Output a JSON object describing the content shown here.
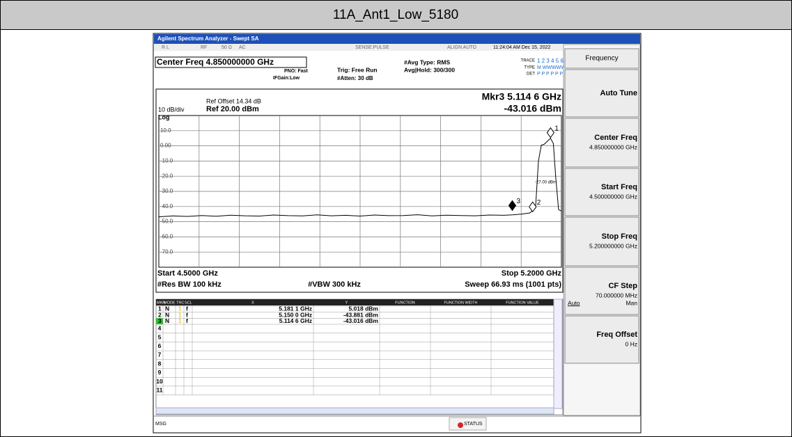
{
  "header": {
    "title": "11A_Ant1_Low_5180"
  },
  "window": {
    "title": "Agilent Spectrum Analyzer - Swept SA"
  },
  "status_bar": {
    "rl": "R L",
    "rf": "RF",
    "impedance": "50 Ω",
    "coupling": "AC",
    "sense": "SENSE:PULSE",
    "align": "ALIGN AUTO",
    "datetime": "11:24:04 AM Dec 15, 2022"
  },
  "settings": {
    "center_freq": "Center Freq 4.850000000 GHz",
    "pno": "PNO: Fast",
    "ifgain": "IFGain:Low",
    "trig": "Trig: Free Run",
    "atten": "#Atten: 30 dB",
    "avg_type": "#Avg Type: RMS",
    "avg_hold": "Avg|Hold: 300/300",
    "trace_label": "TRACE",
    "trace_nums": "1 2 3 4 5 6",
    "type_label": "TYPE",
    "type_val": "M WWWWW",
    "det_label": "DET",
    "det_val": "P P P P P P"
  },
  "display": {
    "ref_offset": "Ref Offset 14.34 dB",
    "scale": "10 dB/div",
    "ref_level": "Ref 20.00 dBm",
    "scale_type": "Log",
    "marker_freq": "Mkr3 5.114 6 GHz",
    "marker_amp": "-43.016 dBm",
    "threshold_label": "-27.00 dBm",
    "start": "Start 4.5000 GHz",
    "stop": "Stop 5.2000 GHz",
    "rbw": "#Res BW 100 kHz",
    "vbw": "#VBW 300 kHz",
    "sweep": "Sweep  66.93 ms (1001 pts)",
    "yticks": [
      {
        "value": 10,
        "label": "10.0"
      },
      {
        "value": 0,
        "label": "0.00"
      },
      {
        "value": -10,
        "label": "-10.0"
      },
      {
        "value": -20,
        "label": "-20.0"
      },
      {
        "value": -30,
        "label": "-30.0"
      },
      {
        "value": -40,
        "label": "-40.0"
      },
      {
        "value": -50,
        "label": "-50.0"
      },
      {
        "value": -60,
        "label": "-60.0"
      },
      {
        "value": -70,
        "label": "-70.0"
      }
    ]
  },
  "trace": {
    "xlim": [
      4.5,
      5.2
    ],
    "x": [
      4.5,
      4.525,
      4.55,
      4.575,
      4.6,
      4.625,
      4.65,
      4.675,
      4.7,
      4.725,
      4.75,
      4.775,
      4.8,
      4.825,
      4.85,
      4.875,
      4.9,
      4.925,
      4.95,
      4.975,
      5.0,
      5.025,
      5.05,
      5.075,
      5.1,
      5.115,
      5.13,
      5.145,
      5.155,
      5.16,
      5.165,
      5.17,
      5.181,
      5.186,
      5.19,
      5.195,
      5.2
    ],
    "values": [
      -46.8,
      -46.2,
      -46.5,
      -45.9,
      -46.4,
      -45.7,
      -46.1,
      -46.3,
      -45.6,
      -46.0,
      -46.2,
      -45.5,
      -46.1,
      -45.8,
      -46.3,
      -45.6,
      -46.0,
      -45.9,
      -45.4,
      -46.2,
      -45.7,
      -45.9,
      -46.1,
      -45.6,
      -45.8,
      -45.5,
      -45.0,
      -44.2,
      -41.0,
      -10.0,
      0.5,
      1.0,
      5.0,
      1.5,
      -20.0,
      -42.0,
      -43.0
    ],
    "markers": [
      {
        "label": "1",
        "x": 5.1811,
        "value": 5.018
      },
      {
        "label": "2",
        "x": 5.15,
        "value": -43.881
      },
      {
        "label": "3",
        "x": 5.1146,
        "value": -43.016
      }
    ]
  },
  "marker_table": {
    "columns": [
      "MKR",
      "MODE",
      "TRC",
      "SCL",
      "X",
      "Y",
      "FUNCTION",
      "FUNCTION WIDTH",
      "FUNCTION VALUE"
    ],
    "rows": [
      [
        "1",
        "N",
        "1",
        "f",
        "5.181 1 GHz",
        "5.018 dBm"
      ],
      [
        "2",
        "N",
        "1",
        "f",
        "5.150 0 GHz",
        "-43.881 dBm"
      ],
      [
        "3",
        "N",
        "1",
        "f",
        "5.114 6 GHz",
        "-43.016 dBm"
      ]
    ],
    "empty_rows": [
      "4",
      "5",
      "6",
      "7",
      "8",
      "9",
      "10",
      "11"
    ]
  },
  "softkeys": [
    {
      "label": "Frequency"
    },
    {
      "label": "Auto Tune"
    },
    {
      "label": "Center Freq",
      "value": "4.850000000 GHz"
    },
    {
      "label": "Start Freq",
      "value": "4.500000000 GHz"
    },
    {
      "label": "Stop Freq",
      "value": "5.200000000 GHz"
    },
    {
      "label": "CF Step",
      "value": "70.000000 MHz",
      "auto": "Auto",
      "man": "Man"
    },
    {
      "label": "Freq Offset",
      "value": "0 Hz"
    }
  ],
  "message_bar": {
    "msg": "MSG",
    "status": "STATUS"
  }
}
